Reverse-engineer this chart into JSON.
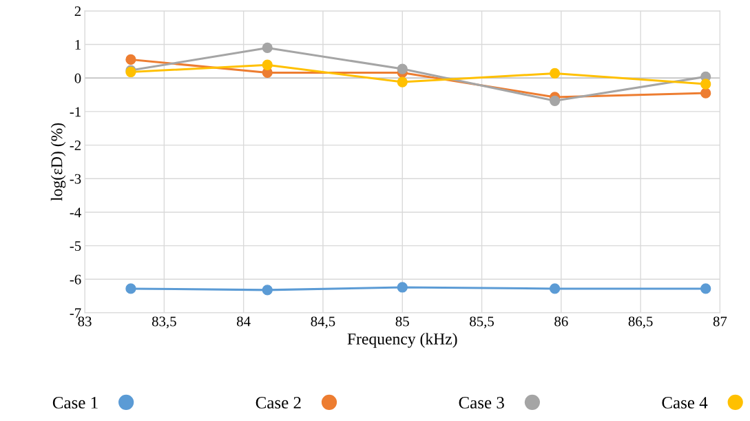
{
  "chart_data": {
    "type": "line",
    "xlabel": "Frequency (kHz)",
    "ylabel": "log(εD) (%)",
    "x": [
      83.29,
      84.15,
      85.0,
      85.96,
      86.91
    ],
    "series": [
      {
        "name": "Case 1",
        "color": "#5b9bd5",
        "values": [
          -6.28,
          -6.32,
          -6.24,
          -6.28,
          -6.28
        ]
      },
      {
        "name": "Case 2",
        "color": "#ed7d31",
        "values": [
          0.55,
          0.16,
          0.16,
          -0.57,
          -0.45
        ]
      },
      {
        "name": "Case 3",
        "color": "#a5a5a5",
        "values": [
          0.23,
          0.9,
          0.27,
          -0.68,
          0.04
        ]
      },
      {
        "name": "Case 4",
        "color": "#ffc000",
        "values": [
          0.18,
          0.39,
          -0.12,
          0.14,
          -0.18
        ]
      }
    ],
    "xlim": [
      83,
      87
    ],
    "xticks": [
      83,
      {
        "value": 83.5,
        "label": "83,5"
      },
      84,
      {
        "value": 84.5,
        "label": "84,5"
      },
      85,
      {
        "value": 85.5,
        "label": "85,5"
      },
      86,
      {
        "value": 86.5,
        "label": "86,5"
      },
      87
    ],
    "ylim": [
      -7,
      2
    ],
    "yticks": [
      -7,
      -6,
      -5,
      -4,
      -3,
      -2,
      -1,
      0,
      1,
      2
    ],
    "grid": true,
    "legend": "bottom",
    "marker": "circle",
    "line_style": "solid"
  }
}
